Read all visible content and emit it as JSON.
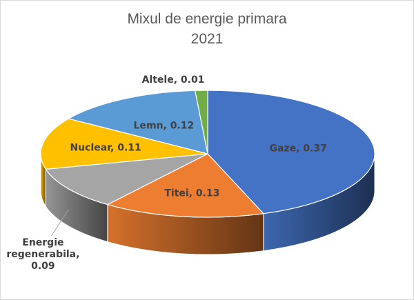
{
  "chart_data": {
    "type": "pie",
    "subtype": "3d-pie",
    "title": [
      "Mixul de energie primara",
      "2021"
    ],
    "categories": [
      "Gaze",
      "Titei",
      "Energie regenerabila",
      "Nuclear",
      "Lemn",
      "Altele"
    ],
    "values": [
      0.37,
      0.13,
      0.09,
      0.11,
      0.12,
      0.01
    ],
    "labels": [
      [
        "Gaze, 0.37"
      ],
      [
        "Titei, 0.13"
      ],
      [
        "Energie",
        "regenerabila,",
        "0.09"
      ],
      [
        "Nuclear, 0.11"
      ],
      [
        "Lemn, 0.12"
      ],
      [
        "Altele, 0.01"
      ]
    ],
    "colors": [
      "#4472C4",
      "#ED7D31",
      "#A5A5A5",
      "#FFC000",
      "#5B9BD5",
      "#70AD47"
    ],
    "legend": "none"
  }
}
